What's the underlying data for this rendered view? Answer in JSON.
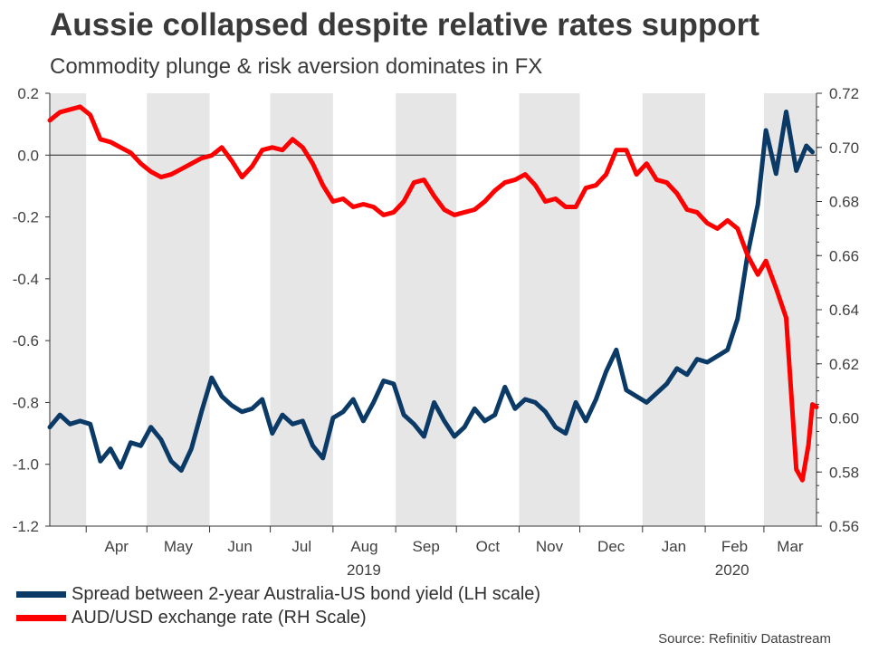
{
  "header": {
    "title": "Aussie collapsed despite relative rates support",
    "subtitle": "Commodity plunge & risk aversion dominates in FX"
  },
  "source": "Source: Refinitiv Datastream",
  "colors": {
    "spread": "#0b3a66",
    "audusd": "#ff0000",
    "band": "#e6e6e6",
    "axis": "#333333"
  },
  "chart_data": {
    "type": "line",
    "x_start": "2019-03-14",
    "x_end": "2020-03-27",
    "month_labels": [
      "Apr",
      "May",
      "Jun",
      "Jul",
      "Aug",
      "Sep",
      "Oct",
      "Nov",
      "Dec",
      "Jan",
      "Feb",
      "Mar"
    ],
    "year_labels": [
      "2019",
      "2020"
    ],
    "y_left": {
      "label": "LH scale",
      "range": [
        -1.2,
        0.2
      ],
      "ticks": [
        "0.2",
        "0.0",
        "-0.2",
        "-0.4",
        "-0.6",
        "-0.8",
        "-1.0",
        "-1.2"
      ]
    },
    "y_right": {
      "label": "RH Scale",
      "range": [
        0.56,
        0.72
      ],
      "ticks": [
        "0.72",
        "0.70",
        "0.68",
        "0.66",
        "0.64",
        "0.62",
        "0.60",
        "0.58",
        "0.56"
      ]
    },
    "series": [
      {
        "name": "Spread between 2-year Australia-US bond yield (LH scale)",
        "axis": "left",
        "points": [
          [
            "2019-03-14",
            -0.88
          ],
          [
            "2019-03-19",
            -0.84
          ],
          [
            "2019-03-24",
            -0.87
          ],
          [
            "2019-03-29",
            -0.86
          ],
          [
            "2019-04-03",
            -0.87
          ],
          [
            "2019-04-08",
            -0.99
          ],
          [
            "2019-04-13",
            -0.95
          ],
          [
            "2019-04-18",
            -1.01
          ],
          [
            "2019-04-23",
            -0.93
          ],
          [
            "2019-04-28",
            -0.94
          ],
          [
            "2019-05-03",
            -0.88
          ],
          [
            "2019-05-08",
            -0.92
          ],
          [
            "2019-05-13",
            -0.99
          ],
          [
            "2019-05-18",
            -1.02
          ],
          [
            "2019-05-23",
            -0.95
          ],
          [
            "2019-05-28",
            -0.83
          ],
          [
            "2019-06-02",
            -0.72
          ],
          [
            "2019-06-07",
            -0.78
          ],
          [
            "2019-06-12",
            -0.81
          ],
          [
            "2019-06-17",
            -0.83
          ],
          [
            "2019-06-22",
            -0.82
          ],
          [
            "2019-06-27",
            -0.79
          ],
          [
            "2019-07-02",
            -0.9
          ],
          [
            "2019-07-07",
            -0.84
          ],
          [
            "2019-07-12",
            -0.87
          ],
          [
            "2019-07-17",
            -0.86
          ],
          [
            "2019-07-22",
            -0.94
          ],
          [
            "2019-07-27",
            -0.98
          ],
          [
            "2019-08-01",
            -0.85
          ],
          [
            "2019-08-06",
            -0.83
          ],
          [
            "2019-08-11",
            -0.79
          ],
          [
            "2019-08-16",
            -0.86
          ],
          [
            "2019-08-21",
            -0.8
          ],
          [
            "2019-08-26",
            -0.73
          ],
          [
            "2019-08-31",
            -0.74
          ],
          [
            "2019-09-05",
            -0.84
          ],
          [
            "2019-09-10",
            -0.87
          ],
          [
            "2019-09-15",
            -0.91
          ],
          [
            "2019-09-20",
            -0.8
          ],
          [
            "2019-09-25",
            -0.86
          ],
          [
            "2019-09-30",
            -0.91
          ],
          [
            "2019-10-05",
            -0.88
          ],
          [
            "2019-10-10",
            -0.82
          ],
          [
            "2019-10-15",
            -0.86
          ],
          [
            "2019-10-20",
            -0.84
          ],
          [
            "2019-10-25",
            -0.75
          ],
          [
            "2019-10-30",
            -0.82
          ],
          [
            "2019-11-04",
            -0.79
          ],
          [
            "2019-11-09",
            -0.8
          ],
          [
            "2019-11-14",
            -0.83
          ],
          [
            "2019-11-19",
            -0.88
          ],
          [
            "2019-11-24",
            -0.9
          ],
          [
            "2019-11-29",
            -0.8
          ],
          [
            "2019-12-04",
            -0.86
          ],
          [
            "2019-12-09",
            -0.79
          ],
          [
            "2019-12-14",
            -0.7
          ],
          [
            "2019-12-19",
            -0.63
          ],
          [
            "2019-12-24",
            -0.76
          ],
          [
            "2019-12-29",
            -0.78
          ],
          [
            "2020-01-03",
            -0.8
          ],
          [
            "2020-01-08",
            -0.77
          ],
          [
            "2020-01-13",
            -0.74
          ],
          [
            "2020-01-18",
            -0.69
          ],
          [
            "2020-01-23",
            -0.71
          ],
          [
            "2020-01-28",
            -0.66
          ],
          [
            "2020-02-02",
            -0.67
          ],
          [
            "2020-02-07",
            -0.65
          ],
          [
            "2020-02-12",
            -0.63
          ],
          [
            "2020-02-17",
            -0.53
          ],
          [
            "2020-02-22",
            -0.32
          ],
          [
            "2020-02-27",
            -0.16
          ],
          [
            "2020-03-02",
            0.08
          ],
          [
            "2020-03-07",
            -0.06
          ],
          [
            "2020-03-12",
            0.14
          ],
          [
            "2020-03-17",
            -0.05
          ],
          [
            "2020-03-22",
            0.03
          ],
          [
            "2020-03-25",
            0.01
          ]
        ]
      },
      {
        "name": "AUD/USD exchange rate (RH Scale)",
        "axis": "right",
        "points": [
          [
            "2019-03-14",
            0.71
          ],
          [
            "2019-03-19",
            0.713
          ],
          [
            "2019-03-24",
            0.714
          ],
          [
            "2019-03-29",
            0.715
          ],
          [
            "2019-04-03",
            0.712
          ],
          [
            "2019-04-08",
            0.703
          ],
          [
            "2019-04-13",
            0.702
          ],
          [
            "2019-04-18",
            0.7
          ],
          [
            "2019-04-23",
            0.698
          ],
          [
            "2019-04-28",
            0.694
          ],
          [
            "2019-05-03",
            0.691
          ],
          [
            "2019-05-08",
            0.689
          ],
          [
            "2019-05-13",
            0.69
          ],
          [
            "2019-05-18",
            0.692
          ],
          [
            "2019-05-23",
            0.694
          ],
          [
            "2019-05-28",
            0.696
          ],
          [
            "2019-06-02",
            0.697
          ],
          [
            "2019-06-07",
            0.7
          ],
          [
            "2019-06-12",
            0.695
          ],
          [
            "2019-06-17",
            0.689
          ],
          [
            "2019-06-22",
            0.693
          ],
          [
            "2019-06-27",
            0.699
          ],
          [
            "2019-07-02",
            0.7
          ],
          [
            "2019-07-07",
            0.699
          ],
          [
            "2019-07-12",
            0.703
          ],
          [
            "2019-07-17",
            0.7
          ],
          [
            "2019-07-22",
            0.694
          ],
          [
            "2019-07-27",
            0.686
          ],
          [
            "2019-08-01",
            0.68
          ],
          [
            "2019-08-06",
            0.681
          ],
          [
            "2019-08-11",
            0.678
          ],
          [
            "2019-08-16",
            0.679
          ],
          [
            "2019-08-21",
            0.678
          ],
          [
            "2019-08-26",
            0.675
          ],
          [
            "2019-08-31",
            0.676
          ],
          [
            "2019-09-05",
            0.68
          ],
          [
            "2019-09-10",
            0.687
          ],
          [
            "2019-09-15",
            0.688
          ],
          [
            "2019-09-20",
            0.682
          ],
          [
            "2019-09-25",
            0.677
          ],
          [
            "2019-09-30",
            0.675
          ],
          [
            "2019-10-05",
            0.676
          ],
          [
            "2019-10-10",
            0.677
          ],
          [
            "2019-10-15",
            0.68
          ],
          [
            "2019-10-20",
            0.684
          ],
          [
            "2019-10-25",
            0.687
          ],
          [
            "2019-10-30",
            0.688
          ],
          [
            "2019-11-04",
            0.69
          ],
          [
            "2019-11-09",
            0.686
          ],
          [
            "2019-11-14",
            0.68
          ],
          [
            "2019-11-19",
            0.681
          ],
          [
            "2019-11-24",
            0.678
          ],
          [
            "2019-11-29",
            0.678
          ],
          [
            "2019-12-04",
            0.685
          ],
          [
            "2019-12-09",
            0.686
          ],
          [
            "2019-12-14",
            0.69
          ],
          [
            "2019-12-19",
            0.699
          ],
          [
            "2019-12-24",
            0.699
          ],
          [
            "2019-12-29",
            0.69
          ],
          [
            "2020-01-03",
            0.694
          ],
          [
            "2020-01-08",
            0.688
          ],
          [
            "2020-01-13",
            0.687
          ],
          [
            "2020-01-18",
            0.683
          ],
          [
            "2020-01-23",
            0.677
          ],
          [
            "2020-01-28",
            0.676
          ],
          [
            "2020-02-02",
            0.672
          ],
          [
            "2020-02-07",
            0.67
          ],
          [
            "2020-02-12",
            0.673
          ],
          [
            "2020-02-17",
            0.67
          ],
          [
            "2020-02-22",
            0.66
          ],
          [
            "2020-02-27",
            0.653
          ],
          [
            "2020-03-02",
            0.658
          ],
          [
            "2020-03-07",
            0.648
          ],
          [
            "2020-03-12",
            0.637
          ],
          [
            "2020-03-17",
            0.581
          ],
          [
            "2020-03-20",
            0.577
          ],
          [
            "2020-03-23",
            0.59
          ],
          [
            "2020-03-25",
            0.605
          ],
          [
            "2020-03-27",
            0.604
          ]
        ]
      }
    ]
  }
}
